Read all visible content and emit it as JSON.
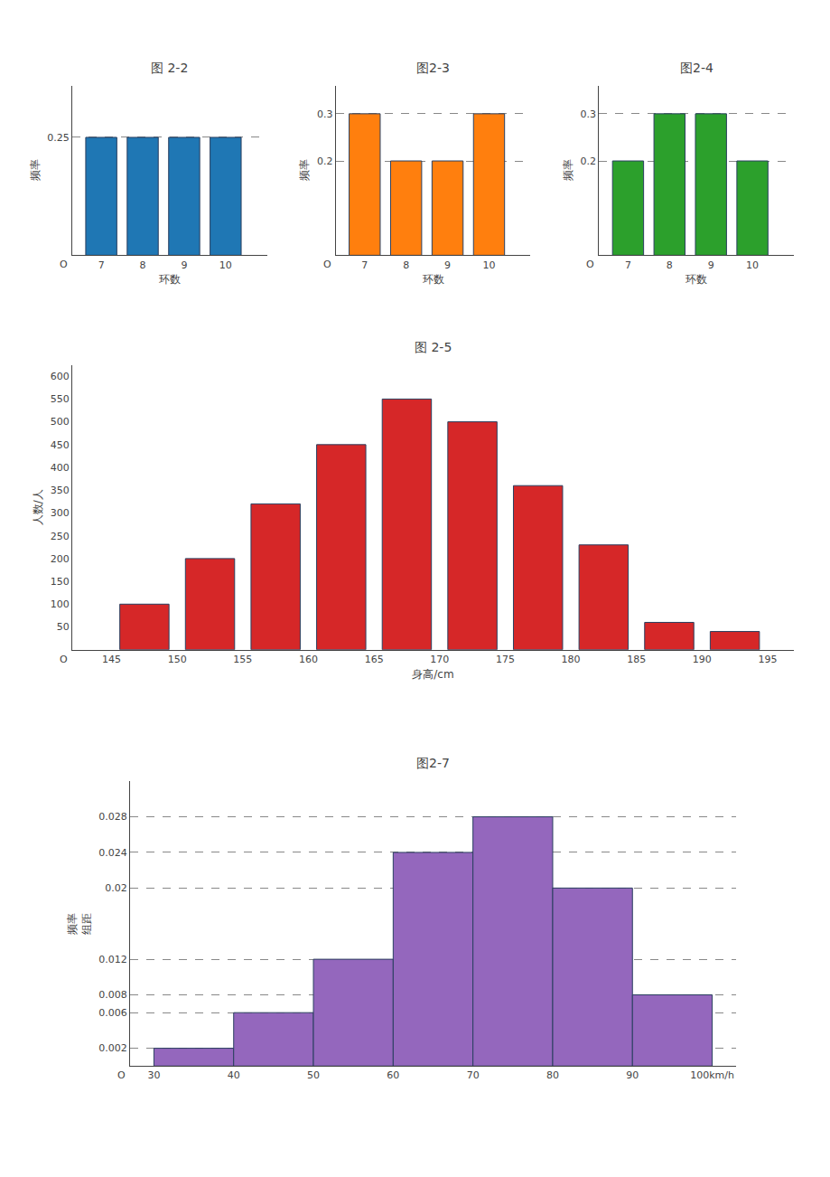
{
  "chart_data": [
    {
      "type": "bar",
      "title": "图 2-2",
      "x_label": "环数",
      "y_label": "频率",
      "x": [
        7,
        8,
        9,
        10
      ],
      "values": [
        0.25,
        0.25,
        0.25,
        0.25
      ],
      "xlim": [
        6.3,
        11.0
      ],
      "xticks": [
        7,
        8,
        9,
        10
      ],
      "ylim": [
        0,
        0.36
      ],
      "yticks": [
        0.25
      ],
      "grid": true,
      "annotations": [
        {
          "text": "O",
          "x": 6.3,
          "y": 0
        }
      ]
    },
    {
      "type": "bar",
      "title": "图2-3",
      "x_label": "环数",
      "y_label": "频率",
      "x": [
        7,
        8,
        9,
        10
      ],
      "values": [
        0.3,
        0.2,
        0.2,
        0.3
      ],
      "xlim": [
        6.3,
        11.0
      ],
      "xticks": [
        7,
        8,
        9,
        10
      ],
      "ylim": [
        0,
        0.36
      ],
      "yticks": [
        0.2,
        0.3
      ],
      "grid": true,
      "annotations": [
        {
          "text": "O",
          "x": 6.3,
          "y": 0
        }
      ]
    },
    {
      "type": "bar",
      "title": "图2-4",
      "x_label": "环数",
      "y_label": "频率",
      "x": [
        7,
        8,
        9,
        10
      ],
      "values": [
        0.2,
        0.3,
        0.3,
        0.2
      ],
      "xlim": [
        6.3,
        11.0
      ],
      "xticks": [
        7,
        8,
        9,
        10
      ],
      "ylim": [
        0,
        0.36
      ],
      "yticks": [
        0.2,
        0.3
      ],
      "grid": true,
      "annotations": [
        {
          "text": "O",
          "x": 6.3,
          "y": 0
        }
      ]
    },
    {
      "type": "bar",
      "title": "图 2-5",
      "x_label": "身高/cm",
      "y_label": "人数/人",
      "x": [
        147.5,
        152.5,
        157.5,
        162.5,
        167.5,
        172.5,
        177.5,
        182.5,
        187.5,
        192.5
      ],
      "values": [
        100,
        200,
        320,
        450,
        550,
        500,
        360,
        230,
        60,
        40
      ],
      "xlim": [
        142,
        197
      ],
      "xticks": [
        145,
        150,
        155,
        160,
        165,
        170,
        175,
        180,
        185,
        190,
        195
      ],
      "ylim": [
        0,
        625
      ],
      "yticks": [
        50,
        100,
        150,
        200,
        250,
        300,
        350,
        400,
        450,
        500,
        550,
        600
      ],
      "grid": false,
      "annotations": [
        {
          "text": "O",
          "x": 142,
          "y": 0
        }
      ]
    },
    {
      "type": "histogram",
      "title": "图2-7",
      "y_label": "频率\n组距",
      "bins": [
        30,
        40,
        50,
        60,
        70,
        80,
        90,
        100
      ],
      "values": [
        0.002,
        0.006,
        0.012,
        0.024,
        0.028,
        0.02,
        0.008
      ],
      "xlim": [
        27,
        103
      ],
      "xticks": [
        30,
        40,
        50,
        60,
        70,
        80,
        90,
        {
          "value": 100,
          "label": "100km/h"
        }
      ],
      "ylim": [
        0,
        0.032
      ],
      "yticks": [
        0.002,
        0.006,
        0.008,
        0.012,
        0.02,
        0.024,
        0.028
      ],
      "grid": true,
      "annotations": [
        {
          "text": "O",
          "x": 27,
          "y": 0
        }
      ]
    }
  ]
}
